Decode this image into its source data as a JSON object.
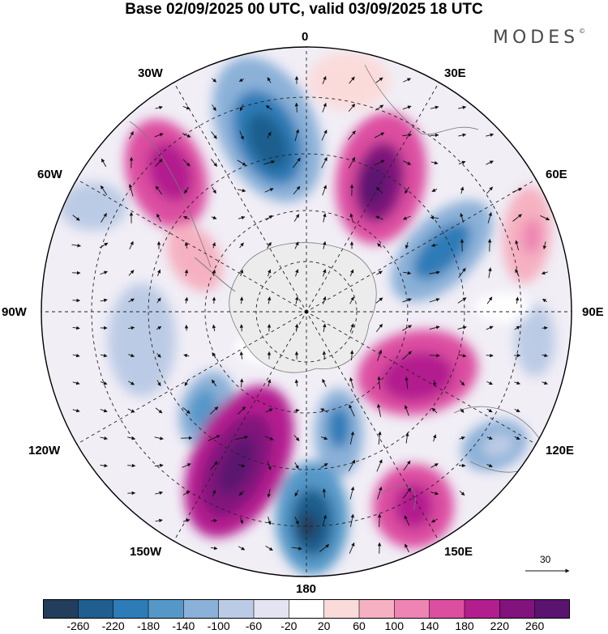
{
  "title": "Base 02/09/2025 00 UTC, valid 03/09/2025 18 UTC",
  "brand": {
    "name": "MODES",
    "mark": "©"
  },
  "map": {
    "projection": "south-polar-stereographic",
    "longitude_labels": [
      "0",
      "30E",
      "60E",
      "90E",
      "120E",
      "150E",
      "180",
      "150W",
      "120W",
      "90W",
      "60W",
      "30W"
    ],
    "reference_vector": {
      "value": "30"
    }
  },
  "colorbar": {
    "tick_labels": [
      "-260",
      "-220",
      "-180",
      "-140",
      "-100",
      "-60",
      "-20",
      "20",
      "60",
      "100",
      "140",
      "180",
      "220",
      "260"
    ],
    "colors": [
      "#233d5c",
      "#1f5e8e",
      "#2d7cb7",
      "#5598c8",
      "#8bb1d8",
      "#bccbe5",
      "#e3e3f1",
      "#ffffff",
      "#fbdada",
      "#f5b1c1",
      "#ee84b3",
      "#dc4ea0",
      "#b31e8f",
      "#80137c",
      "#5a1470"
    ]
  }
}
